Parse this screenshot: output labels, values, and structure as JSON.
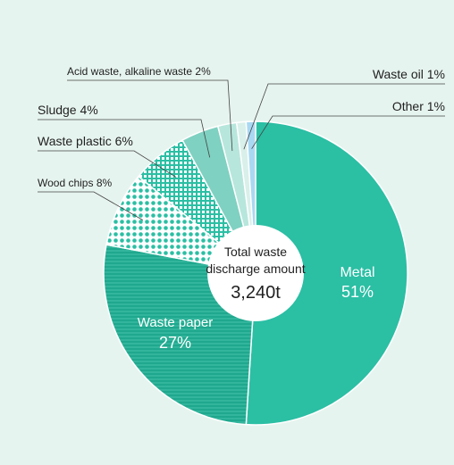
{
  "chart_data": {
    "type": "pie",
    "center_label": {
      "line1": "Total waste",
      "line2": "discharge amount",
      "value": "3,240t"
    },
    "slices": [
      {
        "name": "Metal",
        "value": 51,
        "label": "Metal",
        "pct_label": "51%",
        "color": "#2bbfa4",
        "pattern": "solid"
      },
      {
        "name": "Waste paper",
        "value": 27,
        "label": "Waste paper",
        "pct_label": "27%",
        "color": "#21a98f",
        "pattern": "lines"
      },
      {
        "name": "Wood chips",
        "value": 8,
        "label": "Wood chips 8%",
        "color": "#2bbfa4",
        "pattern": "dots"
      },
      {
        "name": "Waste plastic",
        "value": 6,
        "label": "Waste plastic 6%",
        "color": "#2bbfa4",
        "pattern": "grid"
      },
      {
        "name": "Sludge",
        "value": 4,
        "label": "Sludge 4%",
        "color": "#7fd1c1",
        "pattern": "solid"
      },
      {
        "name": "Acid waste, alkaline waste",
        "value": 2,
        "label": "Acid waste, alkaline waste 2%",
        "color": "#b7e6dc",
        "pattern": "solid"
      },
      {
        "name": "Waste oil",
        "value": 1,
        "label": "Waste oil 1%",
        "color": "#d9f0ea",
        "pattern": "solid"
      },
      {
        "name": "Other",
        "value": 1,
        "label": "Other 1%",
        "color": "#a9d8f2",
        "pattern": "solid"
      }
    ]
  }
}
